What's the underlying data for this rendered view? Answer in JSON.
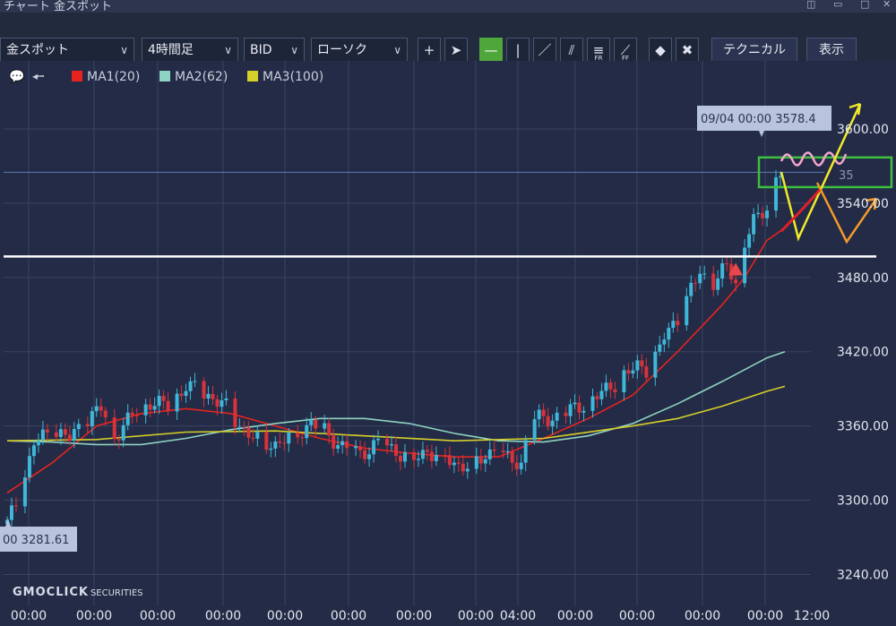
{
  "window": {
    "title": "チャート 金スポット"
  },
  "toolbar": {
    "symbol": "金スポット",
    "timeframe": "4時間足",
    "price_side": "BID",
    "chart_style": "ローソク",
    "technical_label": "テクニカル",
    "display_label": "表示",
    "draw_tool_labels": {
      "fr": "FR",
      "ff": "FF"
    }
  },
  "legend": [
    {
      "name": "MA1(20)",
      "color": "#e8231e"
    },
    {
      "name": "MA2(62)",
      "color": "#8fd3c2"
    },
    {
      "name": "MA3(100)",
      "color": "#d6cf2a"
    }
  ],
  "tooltips": {
    "high": "09/04 00:00 3578.4",
    "low": "00 3281.61"
  },
  "partial_price_label": "35",
  "brand": {
    "name": "GMOCLICK",
    "sub": "SECURITIES"
  },
  "colors": {
    "background": "#232b46",
    "grid": "#3a4463",
    "up_candle": "#3fb7d8",
    "down_candle": "#d9323a",
    "drawn_yellow": "#f2ea2a",
    "drawn_orange": "#f39a2a",
    "drawn_pink": "#f3a6cf",
    "box_green": "#3fbf3f",
    "support_line": "#ffffff"
  },
  "chart_data": {
    "type": "candlestick",
    "instrument": "金スポット",
    "timeframe": "4時間足",
    "y_ticks": [
      3240,
      3300,
      3360,
      3420,
      3480,
      3540,
      3600
    ],
    "y_tick_labels": [
      "3240.00",
      "3300.00",
      "3360.00",
      "3420.00",
      "3480.00",
      "3540.00",
      "3600.00"
    ],
    "ylim": [
      3215,
      3655
    ],
    "x_tick_labels": [
      "00:00",
      "00:00",
      "00:00",
      "00:00",
      "00:00",
      "00:00",
      "00:00",
      "00:00",
      "04:00",
      "00:00",
      "00:00",
      "00:00",
      "00:00",
      "12:00"
    ],
    "candle_count": 148,
    "close_path": [
      [
        0,
        3281
      ],
      [
        3,
        3305
      ],
      [
        6,
        3346
      ],
      [
        10,
        3356
      ],
      [
        14,
        3350
      ],
      [
        18,
        3366
      ],
      [
        21,
        3374
      ],
      [
        24,
        3352
      ],
      [
        28,
        3368
      ],
      [
        32,
        3380
      ],
      [
        36,
        3375
      ],
      [
        40,
        3393
      ],
      [
        44,
        3386
      ],
      [
        48,
        3379
      ],
      [
        52,
        3360
      ],
      [
        56,
        3348
      ],
      [
        60,
        3345
      ],
      [
        64,
        3352
      ],
      [
        68,
        3362
      ],
      [
        71,
        3356
      ],
      [
        75,
        3343
      ],
      [
        79,
        3338
      ],
      [
        83,
        3346
      ],
      [
        87,
        3340
      ],
      [
        91,
        3333
      ],
      [
        94,
        3340
      ],
      [
        97,
        3336
      ],
      [
        101,
        3328
      ],
      [
        105,
        3330
      ],
      [
        109,
        3342
      ],
      [
        112,
        3332
      ],
      [
        115,
        3330
      ],
      [
        117,
        3365
      ],
      [
        121,
        3366
      ],
      [
        125,
        3370
      ],
      [
        129,
        3378
      ],
      [
        133,
        3386
      ],
      [
        137,
        3398
      ],
      [
        141,
        3408
      ],
      [
        144,
        3406
      ],
      [
        147,
        3432
      ],
      [
        151,
        3452
      ],
      [
        153,
        3470
      ],
      [
        155,
        3484
      ],
      [
        157,
        3476
      ],
      [
        159,
        3478
      ],
      [
        161,
        3490
      ],
      [
        163,
        3474
      ],
      [
        165,
        3510
      ],
      [
        167,
        3524
      ],
      [
        170,
        3536
      ],
      [
        172,
        3564
      ],
      [
        174,
        3568
      ]
    ],
    "series": [
      {
        "name": "MA1(20)",
        "points": [
          [
            0,
            3306
          ],
          [
            10,
            3330
          ],
          [
            20,
            3360
          ],
          [
            30,
            3370
          ],
          [
            40,
            3374
          ],
          [
            50,
            3370
          ],
          [
            60,
            3360
          ],
          [
            70,
            3350
          ],
          [
            80,
            3342
          ],
          [
            90,
            3338
          ],
          [
            100,
            3335
          ],
          [
            110,
            3335
          ],
          [
            120,
            3350
          ],
          [
            130,
            3366
          ],
          [
            140,
            3385
          ],
          [
            150,
            3420
          ],
          [
            160,
            3458
          ],
          [
            165,
            3480
          ],
          [
            170,
            3510
          ],
          [
            174,
            3520
          ]
        ]
      },
      {
        "name": "MA2(62)",
        "points": [
          [
            0,
            3348
          ],
          [
            10,
            3347
          ],
          [
            20,
            3345
          ],
          [
            30,
            3345
          ],
          [
            40,
            3350
          ],
          [
            50,
            3357
          ],
          [
            60,
            3362
          ],
          [
            70,
            3366
          ],
          [
            80,
            3366
          ],
          [
            90,
            3362
          ],
          [
            100,
            3354
          ],
          [
            110,
            3348
          ],
          [
            120,
            3347
          ],
          [
            130,
            3352
          ],
          [
            140,
            3362
          ],
          [
            150,
            3378
          ],
          [
            160,
            3396
          ],
          [
            170,
            3415
          ],
          [
            174,
            3420
          ]
        ]
      },
      {
        "name": "MA3(100)",
        "points": [
          [
            0,
            3348
          ],
          [
            20,
            3349
          ],
          [
            40,
            3355
          ],
          [
            60,
            3356
          ],
          [
            80,
            3352
          ],
          [
            100,
            3348
          ],
          [
            120,
            3350
          ],
          [
            140,
            3360
          ],
          [
            150,
            3366
          ],
          [
            160,
            3376
          ],
          [
            170,
            3388
          ],
          [
            174,
            3392
          ]
        ]
      }
    ],
    "annotations": {
      "horizontal_price_line": 3565,
      "support_line": 3497,
      "marker_triangle": {
        "index": 163,
        "price": 3486
      },
      "box_range": [
        3553,
        3577
      ]
    }
  }
}
